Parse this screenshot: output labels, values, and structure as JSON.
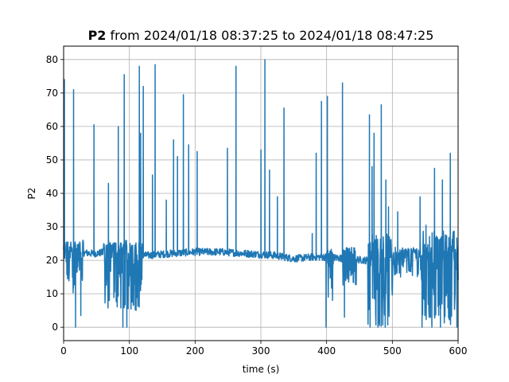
{
  "chart_data": {
    "type": "line",
    "title_bold": "P2",
    "title_rest": " from 2024/01/18 08:37:25 to 2024/01/18 08:47:25",
    "xlabel": "time (s)",
    "ylabel": "P2",
    "xlim": [
      0,
      600
    ],
    "ylim": [
      -4,
      84
    ],
    "xticks": [
      0,
      100,
      200,
      300,
      400,
      500,
      600
    ],
    "yticks": [
      0,
      10,
      20,
      30,
      40,
      50,
      60,
      70,
      80
    ],
    "grid": true,
    "line_color": "#1f77b4",
    "baseline": [
      [
        0,
        22
      ],
      [
        20,
        22.5
      ],
      [
        45,
        22
      ],
      [
        70,
        22.5
      ],
      [
        100,
        21.5
      ],
      [
        130,
        21.5
      ],
      [
        160,
        22
      ],
      [
        200,
        22.5
      ],
      [
        240,
        22.5
      ],
      [
        280,
        22
      ],
      [
        320,
        21.5
      ],
      [
        350,
        20.5
      ],
      [
        380,
        21
      ],
      [
        400,
        21
      ],
      [
        430,
        20.5
      ],
      [
        460,
        20
      ],
      [
        500,
        21
      ],
      [
        540,
        21.5
      ],
      [
        600,
        21
      ]
    ],
    "spikes": [
      {
        "x": 1,
        "y": 74
      },
      {
        "x": 15,
        "y": 71
      },
      {
        "x": 46,
        "y": 60.5
      },
      {
        "x": 68,
        "y": 43
      },
      {
        "x": 83,
        "y": 60
      },
      {
        "x": 92,
        "y": 75.5
      },
      {
        "x": 115,
        "y": 78
      },
      {
        "x": 117,
        "y": 58
      },
      {
        "x": 121,
        "y": 72
      },
      {
        "x": 135,
        "y": 45.5
      },
      {
        "x": 139,
        "y": 78.5
      },
      {
        "x": 156,
        "y": 38
      },
      {
        "x": 167,
        "y": 56
      },
      {
        "x": 173,
        "y": 51
      },
      {
        "x": 182,
        "y": 69.5
      },
      {
        "x": 190,
        "y": 54.5
      },
      {
        "x": 203,
        "y": 52.5
      },
      {
        "x": 249,
        "y": 53.5
      },
      {
        "x": 262,
        "y": 78
      },
      {
        "x": 300,
        "y": 53
      },
      {
        "x": 306,
        "y": 80
      },
      {
        "x": 313,
        "y": 47
      },
      {
        "x": 325,
        "y": 39
      },
      {
        "x": 335,
        "y": 65.5
      },
      {
        "x": 378,
        "y": 28
      },
      {
        "x": 384,
        "y": 52
      },
      {
        "x": 392,
        "y": 67.5
      },
      {
        "x": 401,
        "y": 69
      },
      {
        "x": 424,
        "y": 73
      },
      {
        "x": 465,
        "y": 63.5
      },
      {
        "x": 469,
        "y": 48
      },
      {
        "x": 472,
        "y": 58
      },
      {
        "x": 483,
        "y": 66.5
      },
      {
        "x": 490,
        "y": 44
      },
      {
        "x": 494,
        "y": 36
      },
      {
        "x": 508,
        "y": 34.5
      },
      {
        "x": 542,
        "y": 39
      },
      {
        "x": 551,
        "y": 30.5
      },
      {
        "x": 564,
        "y": 47.5
      },
      {
        "x": 576,
        "y": 44
      },
      {
        "x": 588,
        "y": 52
      }
    ],
    "dips": [
      {
        "x": 18,
        "y": 0
      },
      {
        "x": 26,
        "y": 3.5
      },
      {
        "x": 69,
        "y": 8
      },
      {
        "x": 81,
        "y": 12
      },
      {
        "x": 90,
        "y": 0
      },
      {
        "x": 96,
        "y": 0
      },
      {
        "x": 110,
        "y": 5
      },
      {
        "x": 399,
        "y": 0
      },
      {
        "x": 427,
        "y": 3
      },
      {
        "x": 466,
        "y": 0
      },
      {
        "x": 478,
        "y": 0
      },
      {
        "x": 489,
        "y": 0
      },
      {
        "x": 545,
        "y": 0
      },
      {
        "x": 560,
        "y": 0
      },
      {
        "x": 573,
        "y": 0
      },
      {
        "x": 598,
        "y": 0
      }
    ],
    "noisy_regions": [
      {
        "from": 0,
        "to": 30,
        "low": 10,
        "high": 26
      },
      {
        "from": 60,
        "to": 120,
        "low": 5,
        "high": 26
      },
      {
        "from": 400,
        "to": 410,
        "low": 8,
        "high": 24
      },
      {
        "from": 425,
        "to": 445,
        "low": 12,
        "high": 24
      },
      {
        "from": 463,
        "to": 500,
        "low": 0,
        "high": 28
      },
      {
        "from": 500,
        "to": 540,
        "low": 15,
        "high": 24
      },
      {
        "from": 542,
        "to": 600,
        "low": 0,
        "high": 29
      }
    ]
  }
}
